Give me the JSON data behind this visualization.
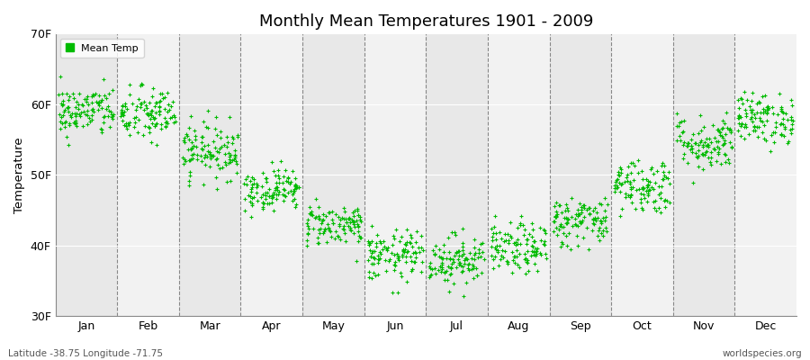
{
  "title": "Monthly Mean Temperatures 1901 - 2009",
  "ylabel": "Temperature",
  "xlabel": "",
  "ylim": [
    30,
    70
  ],
  "yticks": [
    30,
    40,
    50,
    60,
    70
  ],
  "ytick_labels": [
    "30F",
    "40F",
    "50F",
    "60F",
    "70F"
  ],
  "months": [
    "Jan",
    "Feb",
    "Mar",
    "Apr",
    "May",
    "Jun",
    "Jul",
    "Aug",
    "Sep",
    "Oct",
    "Nov",
    "Dec"
  ],
  "dot_color": "#00bb00",
  "bg_color": "#ffffff",
  "plot_bg_color": "#ebebeb",
  "legend_label": "Mean Temp",
  "footer_left": "Latitude -38.75 Longitude -71.75",
  "footer_right": "worldspecies.org",
  "n_years": 109,
  "monthly_means": [
    59.0,
    58.5,
    53.5,
    48.0,
    43.0,
    38.5,
    38.0,
    39.5,
    43.5,
    48.5,
    54.5,
    58.0
  ],
  "monthly_stds": [
    1.8,
    2.0,
    2.0,
    1.5,
    1.5,
    1.8,
    1.8,
    1.8,
    1.8,
    2.0,
    2.0,
    1.8
  ],
  "seed": 42
}
